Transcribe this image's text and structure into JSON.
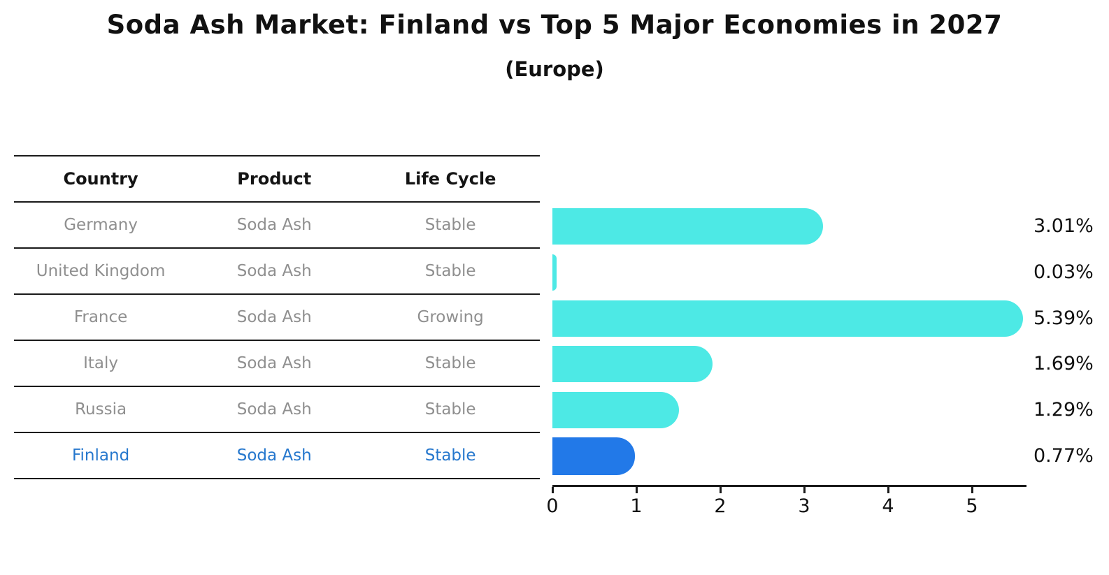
{
  "title": "Soda Ash Market: Finland vs Top 5 Major Economies in 2027",
  "subtitle": "(Europe)",
  "table": {
    "headers": {
      "country": "Country",
      "product": "Product",
      "life_cycle": "Life Cycle"
    },
    "rows": [
      {
        "country": "Germany",
        "product": "Soda Ash",
        "life_cycle": "Stable",
        "highlight": false
      },
      {
        "country": "United Kingdom",
        "product": "Soda Ash",
        "life_cycle": "Stable",
        "highlight": false
      },
      {
        "country": "France",
        "product": "Soda Ash",
        "life_cycle": "Growing",
        "highlight": false
      },
      {
        "country": "Italy",
        "product": "Soda Ash",
        "life_cycle": "Stable",
        "highlight": false
      },
      {
        "country": "Russia",
        "product": "Soda Ash",
        "life_cycle": "Stable",
        "highlight": true
      }
    ],
    "last_row": {
      "country": "Finland",
      "product": "Soda Ash",
      "life_cycle": "Stable"
    }
  },
  "chart_data": {
    "type": "bar",
    "orientation": "horizontal",
    "title": "Soda Ash Market: Finland vs Top 5 Major Economies in 2027 (Europe)",
    "categories": [
      "Germany",
      "United Kingdom",
      "France",
      "Italy",
      "Russia",
      "Finland"
    ],
    "values": [
      3.01,
      0.03,
      5.39,
      1.69,
      1.29,
      0.77
    ],
    "value_labels": [
      "3.01%",
      "0.03%",
      "5.39%",
      "1.69%",
      "1.29%",
      "0.77%"
    ],
    "highlight_category": "Finland",
    "xlabel": "",
    "ylabel": "",
    "xlim": [
      0,
      5.65
    ],
    "xticks": [
      "0",
      "1",
      "2",
      "3",
      "4",
      "5"
    ],
    "grid": false,
    "legend": false,
    "colors": {
      "bar": "#4de9e5",
      "highlight_bar": "#2279e8",
      "highlight_text": "#2577cd",
      "table_text": "#8f8f8f",
      "header_text": "#141414",
      "axis": "#1a1a1a"
    }
  }
}
